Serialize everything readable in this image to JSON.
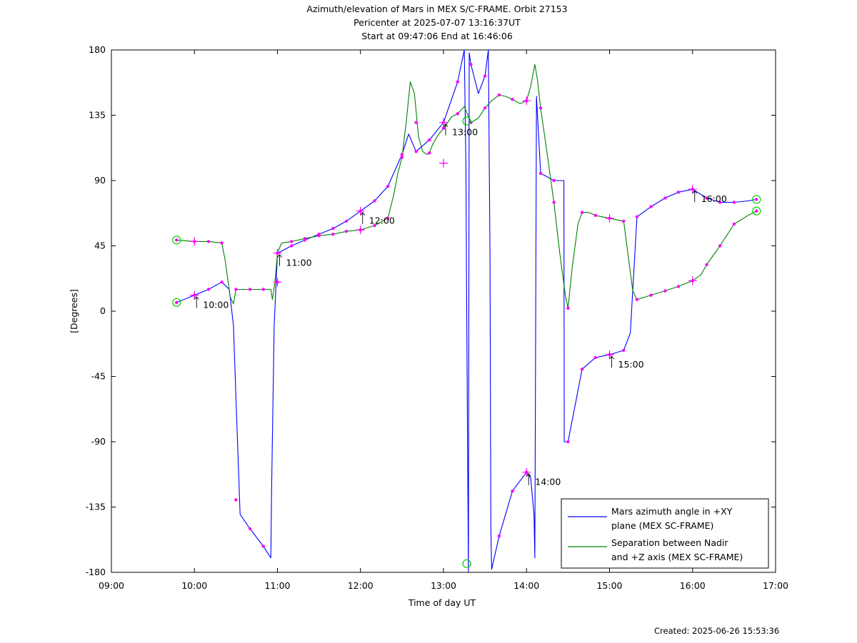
{
  "chart_data": {
    "type": "line",
    "title": [
      "Azimuth/elevation of Mars in MEX S/C-FRAME.  Orbit 27153",
      "Pericenter at 2025-07-07 13:16:37UT",
      "Start at 09:47:06 End at 16:46:06"
    ],
    "xlabel": "Time of day UT",
    "ylabel": "[Degrees]",
    "xlim": [
      9.0,
      17.0
    ],
    "ylim": [
      -180,
      180
    ],
    "x_ticks": [
      9,
      10,
      11,
      12,
      13,
      14,
      15,
      16,
      17
    ],
    "x_tick_labels": [
      "09:00",
      "10:00",
      "11:00",
      "12:00",
      "13:00",
      "14:00",
      "15:00",
      "16:00",
      "17:00"
    ],
    "y_ticks": [
      180,
      135,
      90,
      45,
      0,
      -45,
      -90,
      -135,
      -180
    ],
    "y_tick_labels": [
      "180",
      "135",
      "90",
      "45",
      "0",
      "-45",
      "-90",
      "-135",
      "-180"
    ],
    "grid": false,
    "legend_position": "bottom-right",
    "series": [
      {
        "name": "Mars azimuth angle in +XY plane (MEX SC-FRAME)",
        "legend_lines": [
          "Mars azimuth angle in +XY",
          "plane (MEX SC-FRAME)"
        ],
        "color": "#0000ff",
        "x": [
          9.785,
          10.0,
          10.17,
          10.33,
          10.42,
          10.47,
          10.5,
          10.55,
          10.67,
          10.83,
          10.92,
          10.93,
          10.96,
          11.0,
          11.17,
          11.33,
          11.5,
          11.67,
          11.83,
          12.0,
          12.17,
          12.33,
          12.5,
          12.58,
          12.67,
          12.83,
          13.0,
          13.17,
          13.25,
          13.27,
          13.28,
          13.3,
          13.31,
          13.33,
          13.42,
          13.5,
          13.54,
          13.56,
          13.57,
          13.58,
          13.67,
          13.83,
          14.0,
          14.05,
          14.09,
          14.1,
          14.12,
          14.17,
          14.33,
          14.45,
          14.455,
          14.5,
          14.67,
          14.83,
          15.0,
          15.17,
          15.25,
          15.33,
          15.5,
          15.67,
          15.83,
          16.0,
          16.17,
          16.33,
          16.5,
          16.67,
          16.77
        ],
        "y": [
          6,
          11,
          15,
          20,
          15,
          -10,
          -60,
          -140,
          -150,
          -162,
          -170,
          -120,
          -10,
          40,
          45,
          49,
          53,
          57,
          62,
          69,
          76,
          86,
          108,
          122,
          110,
          118,
          130,
          158,
          180,
          100,
          0,
          -180,
          178,
          170,
          150,
          162,
          180,
          40,
          -150,
          -178,
          -155,
          -124,
          -111,
          -115,
          -140,
          -170,
          148,
          95,
          90,
          90,
          -90,
          -90,
          -40,
          -32,
          -30,
          -27,
          -15,
          65,
          72,
          78,
          82,
          84,
          78,
          75,
          75,
          76,
          77
        ],
        "markers_x": [
          9.785,
          10.0,
          10.17,
          10.33,
          10.5,
          10.67,
          10.83,
          11.0,
          11.17,
          11.33,
          11.5,
          11.67,
          11.83,
          12.0,
          12.17,
          12.33,
          12.5,
          12.67,
          12.83,
          13.0,
          13.17,
          13.33,
          13.5,
          13.67,
          13.83,
          14.0,
          14.17,
          14.33,
          14.5,
          14.67,
          14.83,
          15.0,
          15.17,
          15.33,
          15.5,
          15.67,
          15.83,
          16.0,
          16.17,
          16.33,
          16.5,
          16.77
        ],
        "markers_y": [
          6,
          11,
          15,
          20,
          -130,
          -150,
          -162,
          40,
          45,
          49,
          53,
          57,
          62,
          69,
          76,
          86,
          108,
          110,
          118,
          130,
          158,
          170,
          162,
          -155,
          -124,
          -111,
          95,
          90,
          -90,
          -40,
          -32,
          -30,
          -27,
          65,
          72,
          78,
          82,
          84,
          78,
          75,
          75,
          77
        ]
      },
      {
        "name": "Separation between Nadir and +Z axis (MEX SC-FRAME)",
        "legend_lines": [
          "Separation between Nadir",
          "and +Z axis (MEX SC-FRAME)"
        ],
        "color": "#008000",
        "x": [
          9.785,
          10.0,
          10.17,
          10.33,
          10.37,
          10.43,
          10.47,
          10.5,
          10.55,
          10.67,
          10.83,
          10.92,
          10.94,
          10.97,
          11.0,
          11.05,
          11.17,
          11.33,
          11.5,
          11.67,
          11.83,
          12.0,
          12.17,
          12.33,
          12.4,
          12.45,
          12.5,
          12.55,
          12.6,
          12.65,
          12.7,
          12.75,
          12.8,
          12.83,
          12.87,
          12.93,
          13.0,
          13.1,
          13.17,
          13.25,
          13.33,
          13.42,
          13.5,
          13.58,
          13.67,
          13.75,
          13.83,
          13.92,
          14.0,
          14.05,
          14.1,
          14.13,
          14.17,
          14.25,
          14.33,
          14.4,
          14.47,
          14.5,
          14.55,
          14.62,
          14.67,
          14.75,
          14.83,
          15.0,
          15.17,
          15.22,
          15.28,
          15.33,
          15.5,
          15.67,
          15.83,
          16.0,
          16.1,
          16.17,
          16.33,
          16.5,
          16.67,
          16.77
        ],
        "y": [
          49,
          48,
          48,
          47,
          35,
          10,
          5,
          15,
          15,
          15,
          15,
          15,
          8,
          20,
          40,
          47,
          48,
          50,
          52,
          53,
          55,
          56,
          59,
          64,
          80,
          95,
          106,
          130,
          158,
          150,
          120,
          110,
          108,
          109,
          115,
          121,
          126,
          134,
          136,
          141,
          130,
          133,
          140,
          145,
          149,
          148,
          146,
          143,
          145,
          155,
          170,
          160,
          140,
          108,
          75,
          40,
          10,
          2,
          30,
          60,
          68,
          68,
          66,
          64,
          62,
          40,
          14,
          8,
          11,
          14,
          17,
          21,
          25,
          32,
          45,
          60,
          66,
          69
        ],
        "markers_x": [
          9.785,
          10.0,
          10.17,
          10.33,
          10.5,
          10.67,
          10.83,
          11.0,
          11.17,
          11.33,
          11.5,
          11.67,
          11.83,
          12.0,
          12.17,
          12.33,
          12.5,
          12.67,
          12.83,
          13.0,
          13.17,
          13.33,
          13.5,
          13.67,
          13.83,
          14.0,
          14.17,
          14.33,
          14.5,
          14.67,
          14.83,
          15.0,
          15.17,
          15.33,
          15.5,
          15.67,
          15.83,
          16.0,
          16.17,
          16.33,
          16.5,
          16.77
        ],
        "markers_y": [
          49,
          48,
          48,
          47,
          15,
          15,
          15,
          20,
          48,
          50,
          52,
          53,
          55,
          56,
          59,
          64,
          106,
          130,
          109,
          126,
          136,
          130,
          140,
          149,
          146,
          145,
          140,
          75,
          2,
          68,
          66,
          64,
          62,
          8,
          11,
          14,
          17,
          21,
          32,
          45,
          60,
          69
        ]
      }
    ],
    "time_annotations": [
      {
        "label": "10:00",
        "x": 10.0,
        "y": 11
      },
      {
        "label": "11:00",
        "x": 11.0,
        "y": 40
      },
      {
        "label": "12:00",
        "x": 12.0,
        "y": 69
      },
      {
        "label": "13:00",
        "x": 13.0,
        "y": 130
      },
      {
        "label": "14:00",
        "x": 14.0,
        "y": -111
      },
      {
        "label": "15:00",
        "x": 15.0,
        "y": -30
      },
      {
        "label": "16:00",
        "x": 16.0,
        "y": 84
      }
    ],
    "circle_markers": [
      {
        "x": 9.785,
        "y": 6
      },
      {
        "x": 9.785,
        "y": 49
      },
      {
        "x": 13.28,
        "y": 131
      },
      {
        "x": 13.28,
        "y": -174
      },
      {
        "x": 16.77,
        "y": 77
      },
      {
        "x": 16.77,
        "y": 69
      }
    ],
    "plus_markers": [
      {
        "x": 10.0,
        "y": 11
      },
      {
        "x": 10.0,
        "y": 48
      },
      {
        "x": 11.0,
        "y": 40
      },
      {
        "x": 11.0,
        "y": 20
      },
      {
        "x": 12.0,
        "y": 69
      },
      {
        "x": 12.0,
        "y": 56
      },
      {
        "x": 13.0,
        "y": 130
      },
      {
        "x": 13.0,
        "y": 102
      },
      {
        "x": 14.0,
        "y": -111
      },
      {
        "x": 14.0,
        "y": 145
      },
      {
        "x": 15.0,
        "y": -30
      },
      {
        "x": 15.0,
        "y": 64
      },
      {
        "x": 16.0,
        "y": 84
      },
      {
        "x": 16.0,
        "y": 21
      }
    ],
    "marker_color": "#ff00ff",
    "circle_color": "#00cc00"
  },
  "footer": {
    "created": "Created: 2025-06-26 15:53:36"
  }
}
